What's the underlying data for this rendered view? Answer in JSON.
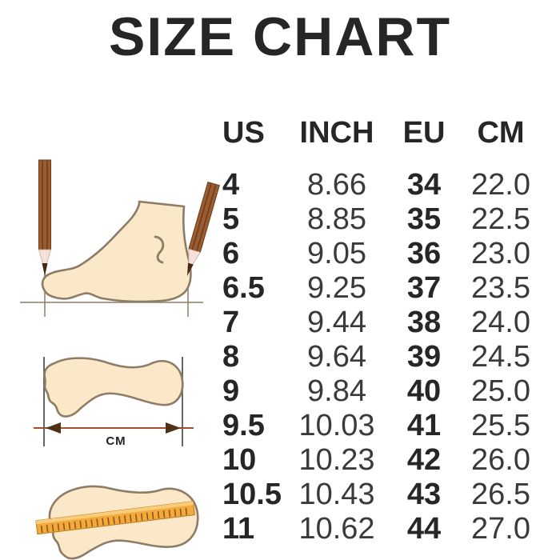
{
  "title": "SIZE CHART",
  "chart_data": {
    "type": "table",
    "title": "SIZE CHART",
    "columns": [
      "US",
      "INCH",
      "EU",
      "CM"
    ],
    "rows": [
      [
        "4",
        "8.66",
        "34",
        "22.0"
      ],
      [
        "5",
        "8.85",
        "35",
        "22.5"
      ],
      [
        "6",
        "9.05",
        "36",
        "23.0"
      ],
      [
        "6.5",
        "9.25",
        "37",
        "23.5"
      ],
      [
        "7",
        "9.44",
        "38",
        "24.0"
      ],
      [
        "8",
        "9.64",
        "39",
        "24.5"
      ],
      [
        "9",
        "9.84",
        "40",
        "25.0"
      ],
      [
        "9.5",
        "10.03",
        "41",
        "25.5"
      ],
      [
        "10",
        "10.23",
        "42",
        "26.0"
      ],
      [
        "10.5",
        "10.43",
        "43",
        "26.5"
      ],
      [
        "11",
        "10.62",
        "44",
        "27.0"
      ]
    ]
  },
  "illustrations": {
    "foot_side_pencils_icon": "foot-side-measure-with-pencils",
    "footprint_length_icon": "footprint-length-double-arrow",
    "footprint_length_label": "CM",
    "footprint_ruler_icon": "footprint-with-ruler"
  },
  "colors": {
    "background": "#ffffff",
    "text_dark": "#262626",
    "text_regular": "#3a3a3a",
    "foot_fill": "#fbe8c8",
    "foot_outline": "#8d7c66",
    "pencil_brown": "#9a5c31",
    "pencil_stripe": "#6e3d18",
    "pencil_wood": "#f6e0da",
    "pencil_lead": "#452810",
    "ruler_orange": "#f3a93c",
    "ruler_light": "#f9cd77",
    "arrow_line": "#a14f2a",
    "arrow_head": "#4f3216"
  }
}
